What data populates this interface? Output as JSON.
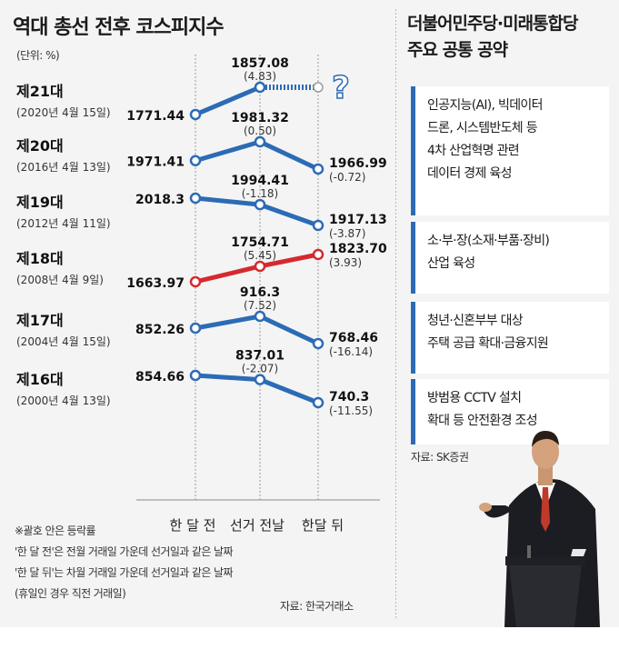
{
  "title": "역대 총선 전후 코스피지수",
  "unit_label": "(단위: %)",
  "right_panel": {
    "title_lines": [
      "더불어민주당·미래통합당",
      "주요 공통 공약"
    ],
    "boxes": [
      {
        "lines": [
          "인공지능(AI), 빅데이터",
          "드론, 시스템반도체 등",
          "4차 산업혁명 관련",
          "데이터 경제 육성"
        ]
      },
      {
        "lines": [
          "소·부·장(소재·부품·장비)",
          "산업 육성"
        ]
      },
      {
        "lines": [
          "청년·신혼부부 대상",
          "주택 공급 확대·금융지원"
        ]
      },
      {
        "lines": [
          "방범용 CCTV 설치",
          "확대 등 안전환경 조성"
        ]
      }
    ],
    "source": "자료: SK증권"
  },
  "notes": [
    "※괄호 안은 등락률",
    "'한 달 전'은 전월 거래일 가운데 선거일과 같은 날짜",
    "'한 달 뒤'는 차월 거래일 가운데 선거일과 같은 날짜",
    "(휴일인 경우 직전 거래일)"
  ],
  "source": "자료: 한국거래소",
  "colors": {
    "blue": "#2c6bb5",
    "red": "#d42a2f",
    "panel": "#f4f4f4"
  },
  "chart_data": {
    "type": "line",
    "categories": [
      "한 달 전",
      "선거 전날",
      "한달 뒤"
    ],
    "series": [
      {
        "name": "제21대",
        "date": "(2020년 4월 15일)",
        "values": [
          1771.44,
          1857.08,
          null
        ],
        "labels": [
          "1771.44",
          "1857.08",
          ""
        ],
        "changes": [
          null,
          "(4.83)",
          null
        ],
        "after_unknown": true,
        "unknown_mark": "?",
        "color": "blue"
      },
      {
        "name": "제20대",
        "date": "(2016년 4월 13일)",
        "values": [
          1971.41,
          1981.32,
          1966.99
        ],
        "labels": [
          "1971.41",
          "1981.32",
          "1966.99"
        ],
        "changes": [
          null,
          "(0.50)",
          "(-0.72)"
        ],
        "color": "blue"
      },
      {
        "name": "제19대",
        "date": "(2012년 4월 11일)",
        "values": [
          2018.3,
          1994.41,
          1917.13
        ],
        "labels": [
          "2018.3",
          "1994.41",
          "1917.13"
        ],
        "changes": [
          null,
          "(-1.18)",
          "(-3.87)"
        ],
        "color": "blue"
      },
      {
        "name": "제18대",
        "date": "(2008년 4월 9일)",
        "values": [
          1663.97,
          1754.71,
          1823.7
        ],
        "labels": [
          "1663.97",
          "1754.71",
          "1823.70"
        ],
        "changes": [
          null,
          "(5.45)",
          "(3.93)"
        ],
        "color": "red"
      },
      {
        "name": "제17대",
        "date": "(2004년 4월 15일)",
        "values": [
          852.26,
          916.3,
          768.46
        ],
        "labels": [
          "852.26",
          "916.3",
          "768.46"
        ],
        "changes": [
          null,
          "(7.52)",
          "(-16.14)"
        ],
        "color": "blue"
      },
      {
        "name": "제16대",
        "date": "(2000년 4월 13일)",
        "values": [
          854.66,
          837.01,
          740.3
        ],
        "labels": [
          "854.66",
          "837.01",
          "740.3"
        ],
        "changes": [
          null,
          "(-2.07)",
          "(-11.55)"
        ],
        "color": "blue"
      }
    ]
  }
}
